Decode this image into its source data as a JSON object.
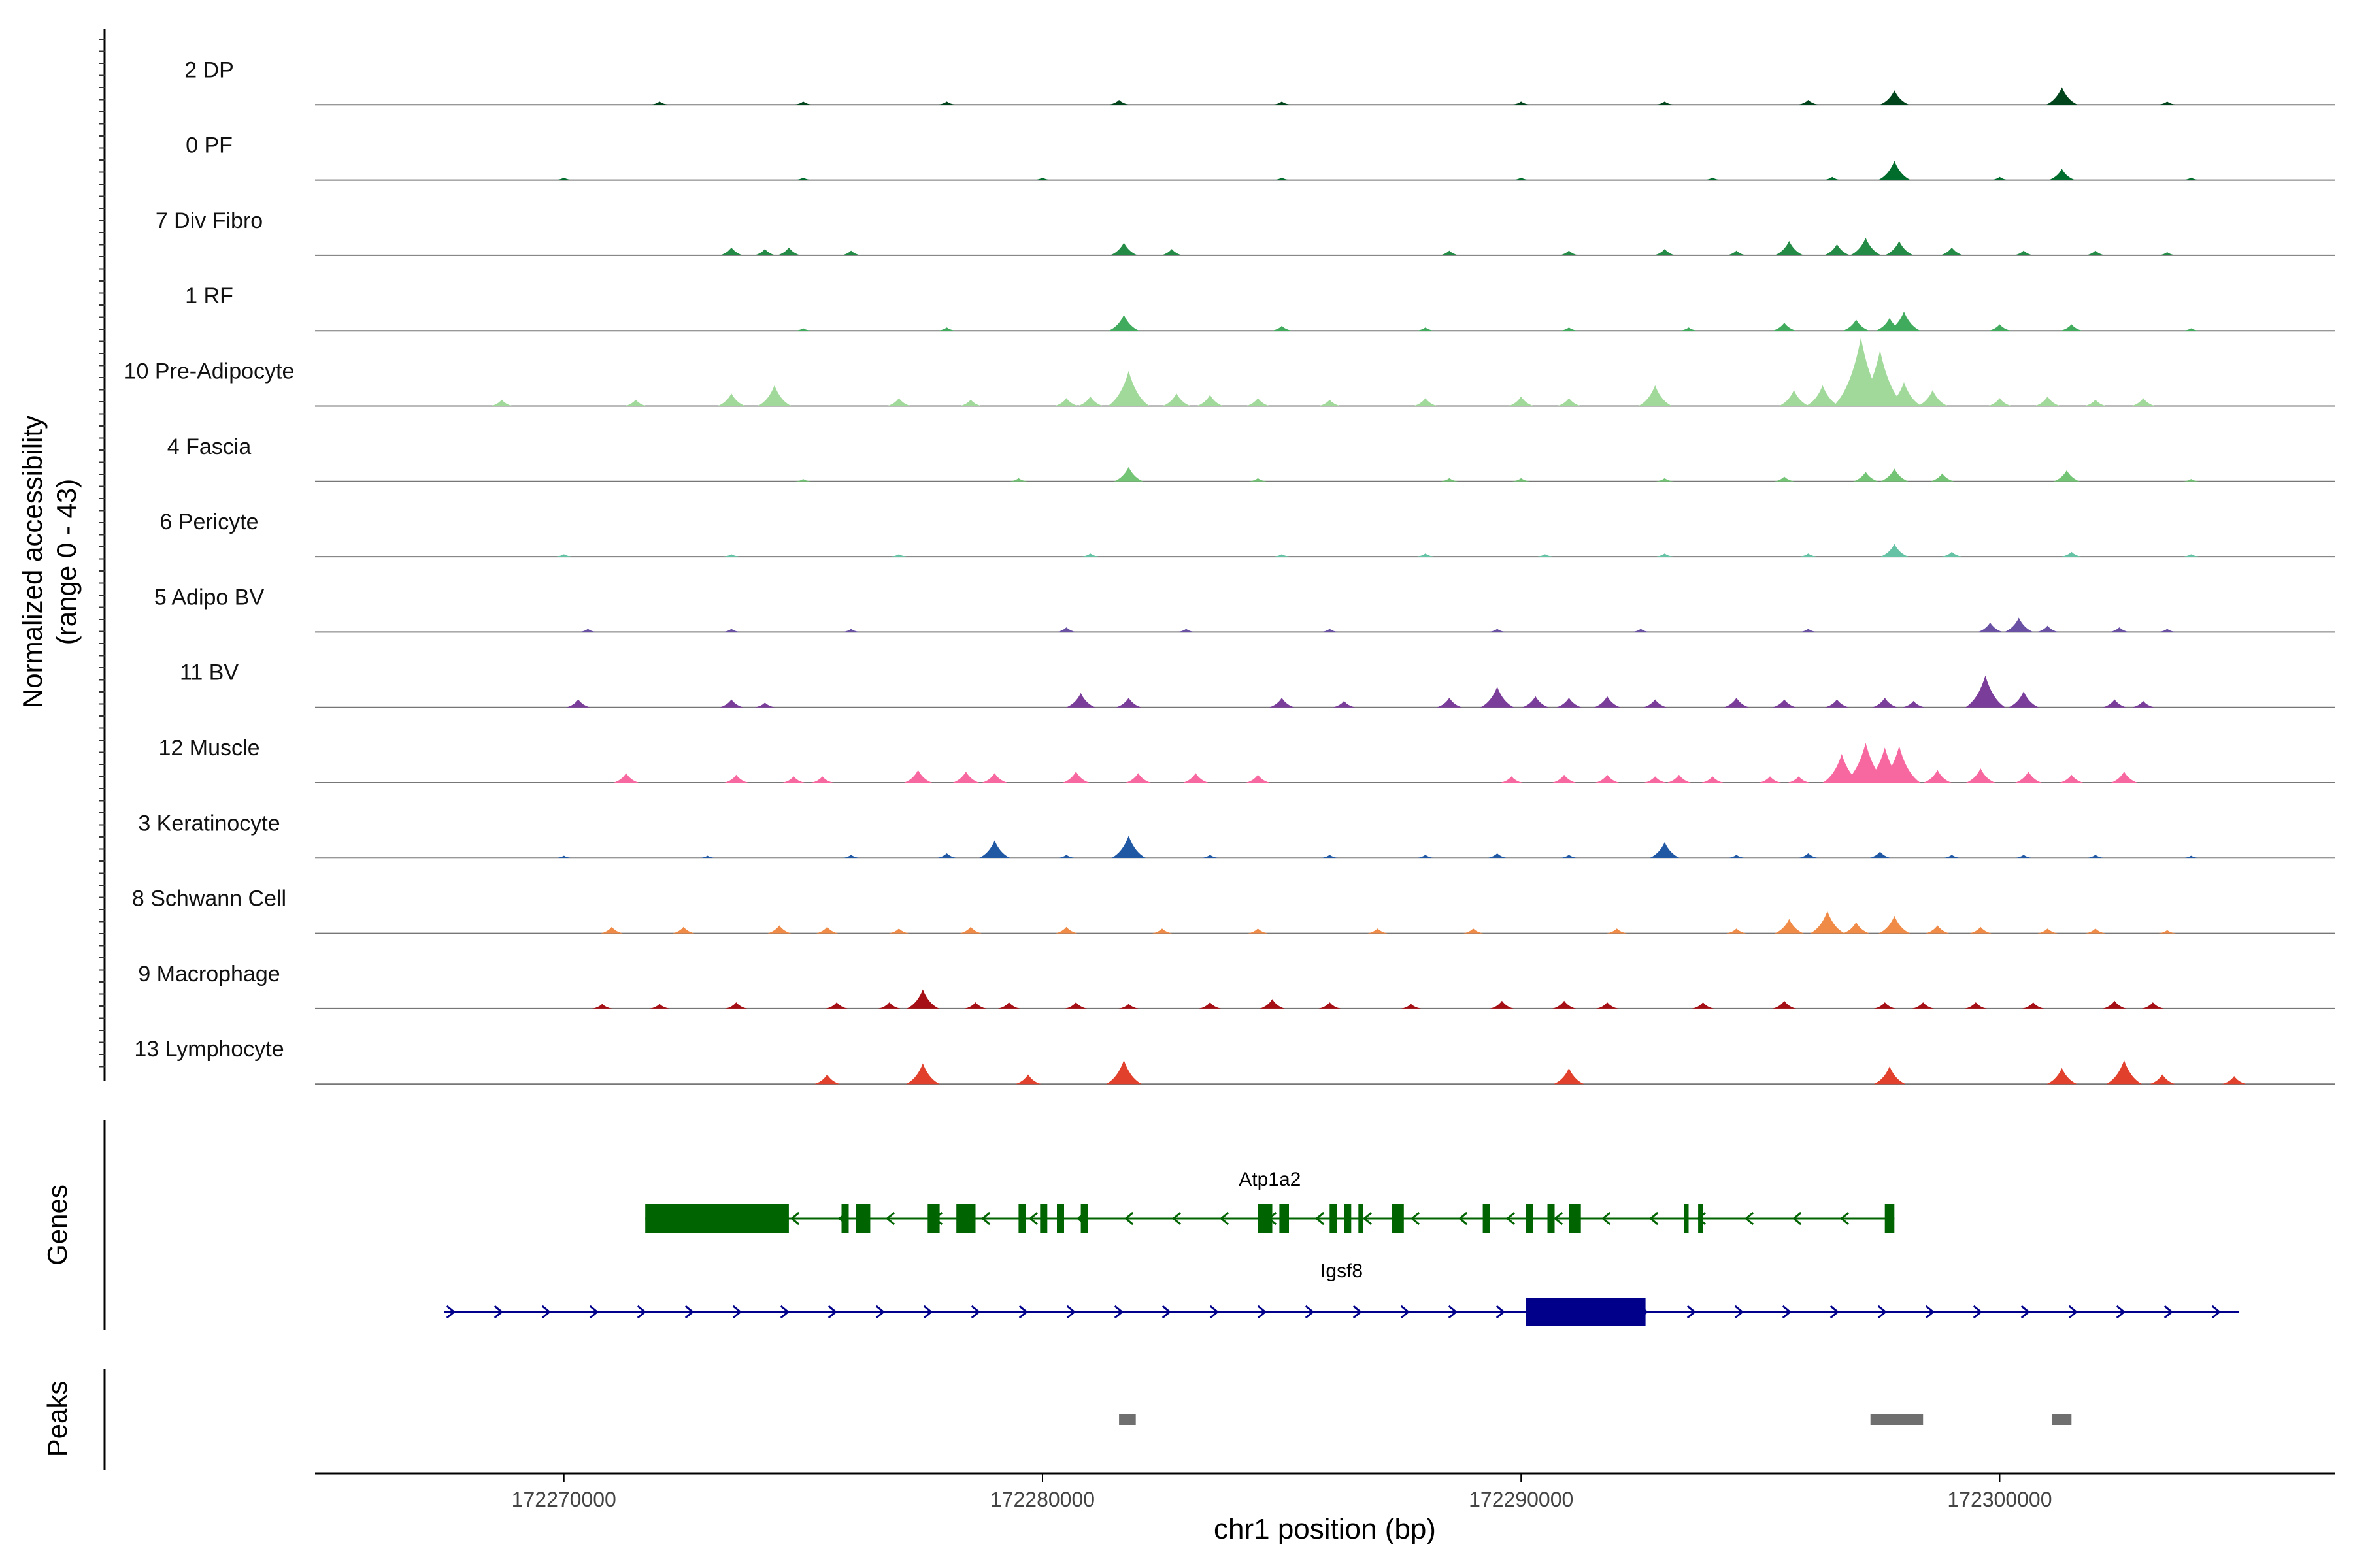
{
  "chart_data": {
    "type": "area",
    "ylabel_line1": "Normalized accessibility",
    "ylabel_line2": "(range 0 - 43)",
    "ylim": [
      0,
      43
    ],
    "xlabel": "chr1 position (bp)",
    "xlim": [
      172264800,
      172307000
    ],
    "xticks": [
      172270000,
      172280000,
      172290000,
      172300000
    ],
    "xtick_labels": [
      "172270000",
      "172280000",
      "172290000",
      "172300000"
    ],
    "tracks": [
      {
        "name": "2 DP",
        "color": "#00441b",
        "peaks": [
          [
            172272000,
            2
          ],
          [
            172275000,
            2
          ],
          [
            172278000,
            2
          ],
          [
            172281600,
            3
          ],
          [
            172285000,
            2
          ],
          [
            172290000,
            2
          ],
          [
            172293000,
            2
          ],
          [
            172296000,
            3
          ],
          [
            172297800,
            9
          ],
          [
            172301300,
            11
          ],
          [
            172303500,
            2
          ]
        ]
      },
      {
        "name": "0 PF",
        "color": "#006d2c",
        "peaks": [
          [
            172270000,
            1.5
          ],
          [
            172275000,
            1.5
          ],
          [
            172280000,
            1.5
          ],
          [
            172285000,
            1.5
          ],
          [
            172290000,
            1.5
          ],
          [
            172294000,
            1.5
          ],
          [
            172296500,
            2
          ],
          [
            172297800,
            12
          ],
          [
            172300000,
            2
          ],
          [
            172301300,
            7
          ],
          [
            172304000,
            1.5
          ]
        ]
      },
      {
        "name": "7 Div Fibro",
        "color": "#238b45",
        "peaks": [
          [
            172273500,
            5
          ],
          [
            172274200,
            4
          ],
          [
            172274700,
            5
          ],
          [
            172276000,
            3
          ],
          [
            172281700,
            8
          ],
          [
            172282700,
            4
          ],
          [
            172288500,
            3
          ],
          [
            172291000,
            3
          ],
          [
            172293000,
            4
          ],
          [
            172294500,
            3
          ],
          [
            172295600,
            9
          ],
          [
            172296600,
            7
          ],
          [
            172297200,
            11
          ],
          [
            172297900,
            9
          ],
          [
            172299000,
            5
          ],
          [
            172300500,
            3
          ],
          [
            172302000,
            3
          ],
          [
            172303500,
            2
          ]
        ]
      },
      {
        "name": "1 RF",
        "color": "#41ab5d",
        "peaks": [
          [
            172275000,
            1.5
          ],
          [
            172278000,
            2
          ],
          [
            172281700,
            10
          ],
          [
            172285000,
            3
          ],
          [
            172288000,
            2
          ],
          [
            172291000,
            2
          ],
          [
            172293500,
            2
          ],
          [
            172295500,
            5
          ],
          [
            172297000,
            7
          ],
          [
            172297700,
            8
          ],
          [
            172298000,
            12
          ],
          [
            172300000,
            4
          ],
          [
            172301500,
            4
          ],
          [
            172304000,
            1.5
          ]
        ]
      },
      {
        "name": "10 Pre-Adipocyte",
        "color": "#a1d99b",
        "peaks": [
          [
            172268700,
            4
          ],
          [
            172271500,
            4
          ],
          [
            172273500,
            8
          ],
          [
            172274400,
            13
          ],
          [
            172277000,
            5
          ],
          [
            172278500,
            4
          ],
          [
            172280500,
            5
          ],
          [
            172281000,
            6
          ],
          [
            172281800,
            22
          ],
          [
            172282800,
            8
          ],
          [
            172283500,
            7
          ],
          [
            172284500,
            5
          ],
          [
            172286000,
            4
          ],
          [
            172288000,
            5
          ],
          [
            172290000,
            6
          ],
          [
            172291000,
            5
          ],
          [
            172292800,
            13
          ],
          [
            172295700,
            10
          ],
          [
            172296300,
            13
          ],
          [
            172297100,
            43
          ],
          [
            172297500,
            35
          ],
          [
            172298000,
            15
          ],
          [
            172298600,
            10
          ],
          [
            172300000,
            5
          ],
          [
            172301000,
            6
          ],
          [
            172302000,
            4
          ],
          [
            172303000,
            5
          ]
        ]
      },
      {
        "name": "4 Fascia",
        "color": "#74c476",
        "peaks": [
          [
            172275000,
            1.5
          ],
          [
            172279500,
            2
          ],
          [
            172281800,
            9
          ],
          [
            172284500,
            2
          ],
          [
            172288500,
            2
          ],
          [
            172290000,
            2
          ],
          [
            172293000,
            2
          ],
          [
            172295500,
            3
          ],
          [
            172297200,
            6
          ],
          [
            172297800,
            8
          ],
          [
            172298800,
            5
          ],
          [
            172301400,
            7
          ],
          [
            172304000,
            1.5
          ]
        ]
      },
      {
        "name": "6 Pericyte",
        "color": "#66c2a4",
        "peaks": [
          [
            172270000,
            1.5
          ],
          [
            172273500,
            1.5
          ],
          [
            172277000,
            1.5
          ],
          [
            172281000,
            2
          ],
          [
            172285000,
            1.5
          ],
          [
            172288000,
            2
          ],
          [
            172290500,
            1.5
          ],
          [
            172293000,
            2
          ],
          [
            172296000,
            2
          ],
          [
            172297800,
            8
          ],
          [
            172299000,
            3
          ],
          [
            172301500,
            3
          ],
          [
            172304000,
            1.5
          ]
        ]
      },
      {
        "name": "5 Adipo BV",
        "color": "#6a51a3",
        "peaks": [
          [
            172270500,
            2
          ],
          [
            172273500,
            2
          ],
          [
            172276000,
            2
          ],
          [
            172280500,
            3
          ],
          [
            172283000,
            2
          ],
          [
            172286000,
            2
          ],
          [
            172289500,
            2
          ],
          [
            172292500,
            2
          ],
          [
            172296000,
            2
          ],
          [
            172299800,
            6
          ],
          [
            172300400,
            9
          ],
          [
            172301000,
            4
          ],
          [
            172302500,
            3
          ],
          [
            172303500,
            2
          ]
        ]
      },
      {
        "name": "11 BV",
        "color": "#7a3d9a",
        "peaks": [
          [
            172270300,
            5
          ],
          [
            172273500,
            5
          ],
          [
            172274200,
            3
          ],
          [
            172280800,
            9
          ],
          [
            172281800,
            6
          ],
          [
            172285000,
            6
          ],
          [
            172286300,
            4
          ],
          [
            172288500,
            6
          ],
          [
            172289500,
            13
          ],
          [
            172290300,
            7
          ],
          [
            172291000,
            6
          ],
          [
            172291800,
            7
          ],
          [
            172292800,
            5
          ],
          [
            172294500,
            6
          ],
          [
            172295500,
            5
          ],
          [
            172296600,
            5
          ],
          [
            172297600,
            6
          ],
          [
            172298200,
            4
          ],
          [
            172299700,
            20
          ],
          [
            172300500,
            10
          ],
          [
            172302400,
            5
          ],
          [
            172303000,
            4
          ]
        ]
      },
      {
        "name": "12 Muscle",
        "color": "#f768a1",
        "peaks": [
          [
            172271300,
            6
          ],
          [
            172273600,
            5
          ],
          [
            172274800,
            4
          ],
          [
            172275400,
            4
          ],
          [
            172277400,
            8
          ],
          [
            172278400,
            7
          ],
          [
            172279000,
            6
          ],
          [
            172280700,
            7
          ],
          [
            172282000,
            6
          ],
          [
            172283200,
            6
          ],
          [
            172284500,
            5
          ],
          [
            172289800,
            4
          ],
          [
            172290900,
            5
          ],
          [
            172291800,
            5
          ],
          [
            172292800,
            4
          ],
          [
            172293300,
            5
          ],
          [
            172294000,
            4
          ],
          [
            172295200,
            4
          ],
          [
            172295800,
            4
          ],
          [
            172296700,
            18
          ],
          [
            172297200,
            25
          ],
          [
            172297600,
            22
          ],
          [
            172297900,
            23
          ],
          [
            172298700,
            8
          ],
          [
            172299600,
            9
          ],
          [
            172300600,
            7
          ],
          [
            172301500,
            5
          ],
          [
            172302600,
            7
          ]
        ]
      },
      {
        "name": "3 Keratinocyte",
        "color": "#2158a4",
        "peaks": [
          [
            172270000,
            1.5
          ],
          [
            172273000,
            1.5
          ],
          [
            172276000,
            2
          ],
          [
            172278000,
            3
          ],
          [
            172279000,
            11
          ],
          [
            172280500,
            2
          ],
          [
            172281800,
            14
          ],
          [
            172283500,
            2
          ],
          [
            172286000,
            2
          ],
          [
            172288000,
            2
          ],
          [
            172289500,
            3
          ],
          [
            172291000,
            2
          ],
          [
            172293000,
            10
          ],
          [
            172294500,
            2
          ],
          [
            172296000,
            3
          ],
          [
            172297500,
            4
          ],
          [
            172299000,
            2
          ],
          [
            172300500,
            2
          ],
          [
            172302000,
            2
          ],
          [
            172304000,
            1.5
          ]
        ]
      },
      {
        "name": "8 Schwann Cell",
        "color": "#ef8a47",
        "peaks": [
          [
            172271000,
            4
          ],
          [
            172272500,
            4
          ],
          [
            172274500,
            5
          ],
          [
            172275500,
            4
          ],
          [
            172277000,
            3
          ],
          [
            172278500,
            4
          ],
          [
            172280500,
            4
          ],
          [
            172282500,
            3
          ],
          [
            172284500,
            3
          ],
          [
            172287000,
            3
          ],
          [
            172289000,
            3
          ],
          [
            172292000,
            3
          ],
          [
            172294500,
            3
          ],
          [
            172295600,
            9
          ],
          [
            172296400,
            14
          ],
          [
            172297000,
            7
          ],
          [
            172297800,
            11
          ],
          [
            172298700,
            5
          ],
          [
            172299600,
            4
          ],
          [
            172301000,
            3
          ],
          [
            172302000,
            3
          ],
          [
            172303500,
            2
          ]
        ]
      },
      {
        "name": "9 Macrophage",
        "color": "#a50f15",
        "peaks": [
          [
            172270800,
            3
          ],
          [
            172272000,
            3
          ],
          [
            172273600,
            4
          ],
          [
            172275700,
            4
          ],
          [
            172276800,
            4
          ],
          [
            172277500,
            12
          ],
          [
            172278600,
            4
          ],
          [
            172279300,
            4
          ],
          [
            172280700,
            4
          ],
          [
            172281800,
            3
          ],
          [
            172283500,
            4
          ],
          [
            172284800,
            6
          ],
          [
            172286000,
            4
          ],
          [
            172287700,
            3
          ],
          [
            172289600,
            5
          ],
          [
            172290900,
            5
          ],
          [
            172291800,
            4
          ],
          [
            172293800,
            4
          ],
          [
            172295500,
            5
          ],
          [
            172297600,
            4
          ],
          [
            172298400,
            4
          ],
          [
            172299500,
            4
          ],
          [
            172300700,
            4
          ],
          [
            172302400,
            5
          ],
          [
            172303200,
            4
          ]
        ]
      },
      {
        "name": "13 Lymphocyte",
        "color": "#e0402c",
        "peaks": [
          [
            172275500,
            6
          ],
          [
            172277500,
            13
          ],
          [
            172279700,
            6
          ],
          [
            172281700,
            15
          ],
          [
            172291000,
            10
          ],
          [
            172297700,
            11
          ],
          [
            172301300,
            10
          ],
          [
            172302600,
            15
          ],
          [
            172303400,
            6
          ],
          [
            172304900,
            5
          ]
        ]
      }
    ]
  },
  "genes_panel": {
    "ylabel": "Genes",
    "genes": [
      {
        "name": "Atp1a2",
        "strand": "-",
        "color": "#006400",
        "start": 172271700,
        "end": 172297800,
        "exons": [
          [
            172271700,
            172274700
          ],
          [
            172275800,
            172275950
          ],
          [
            172276100,
            172276400
          ],
          [
            172277600,
            172277850
          ],
          [
            172278200,
            172278600
          ],
          [
            172279500,
            172279650
          ],
          [
            172279950,
            172280100
          ],
          [
            172280300,
            172280450
          ],
          [
            172280800,
            172280950
          ],
          [
            172284500,
            172284800
          ],
          [
            172284950,
            172285150
          ],
          [
            172286000,
            172286150
          ],
          [
            172286300,
            172286450
          ],
          [
            172286600,
            172286700
          ],
          [
            172287300,
            172287550
          ],
          [
            172289200,
            172289350
          ],
          [
            172290100,
            172290250
          ],
          [
            172290550,
            172290700
          ],
          [
            172291000,
            172291250
          ],
          [
            172293400,
            172293500
          ],
          [
            172293700,
            172293800
          ],
          [
            172297600,
            172297800
          ]
        ]
      },
      {
        "name": "Igsf8",
        "strand": "+",
        "color": "#00008b",
        "start": 172267500,
        "end": 172305000,
        "exons": [
          [
            172290100,
            172292600
          ]
        ]
      }
    ]
  },
  "peaks_panel": {
    "ylabel": "Peaks",
    "color": "#6f6f6f",
    "peaks": [
      [
        172281600,
        172281950
      ],
      [
        172297300,
        172298400
      ],
      [
        172301100,
        172301500
      ]
    ]
  }
}
